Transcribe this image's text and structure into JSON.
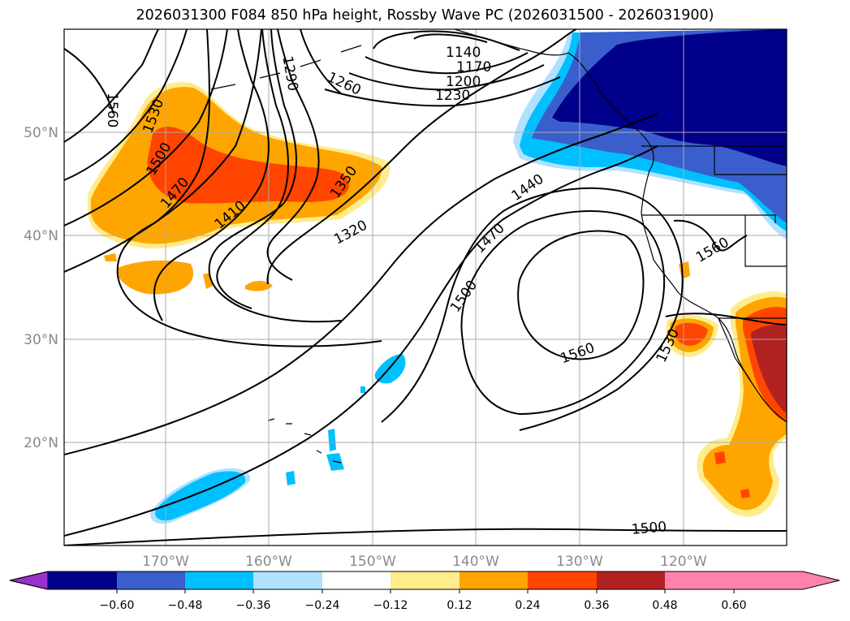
{
  "title": "2026031300 F084 850 hPa height, Rossby Wave PC (2026031500 - 2026031900)",
  "map": {
    "lat_labels": [
      "50°N",
      "40°N",
      "30°N",
      "20°N"
    ],
    "lon_labels": [
      "170°W",
      "160°W",
      "150°W",
      "140°W",
      "130°W",
      "120°W"
    ],
    "grid": true
  },
  "contour_labels": [
    "1560",
    "1530",
    "1500",
    "1470",
    "1410",
    "1350",
    "1320",
    "1260",
    "1230",
    "1200",
    "1170",
    "1140",
    "1290",
    "1440",
    "1470",
    "1500",
    "1560",
    "1530",
    "1560",
    "1500"
  ],
  "colorbar": {
    "tick_labels": [
      "−0.60",
      "−0.48",
      "−0.36",
      "−0.24",
      "−0.12",
      "0.12",
      "0.24",
      "0.36",
      "0.48",
      "0.60"
    ],
    "colors": [
      "#9932cc",
      "#00008b",
      "#3a5fcd",
      "#00bfff",
      "#b0e2ff",
      "#ffffff",
      "#ffec8b",
      "#ffa500",
      "#ff4500",
      "#b22222",
      "#ff82ab"
    ]
  }
}
